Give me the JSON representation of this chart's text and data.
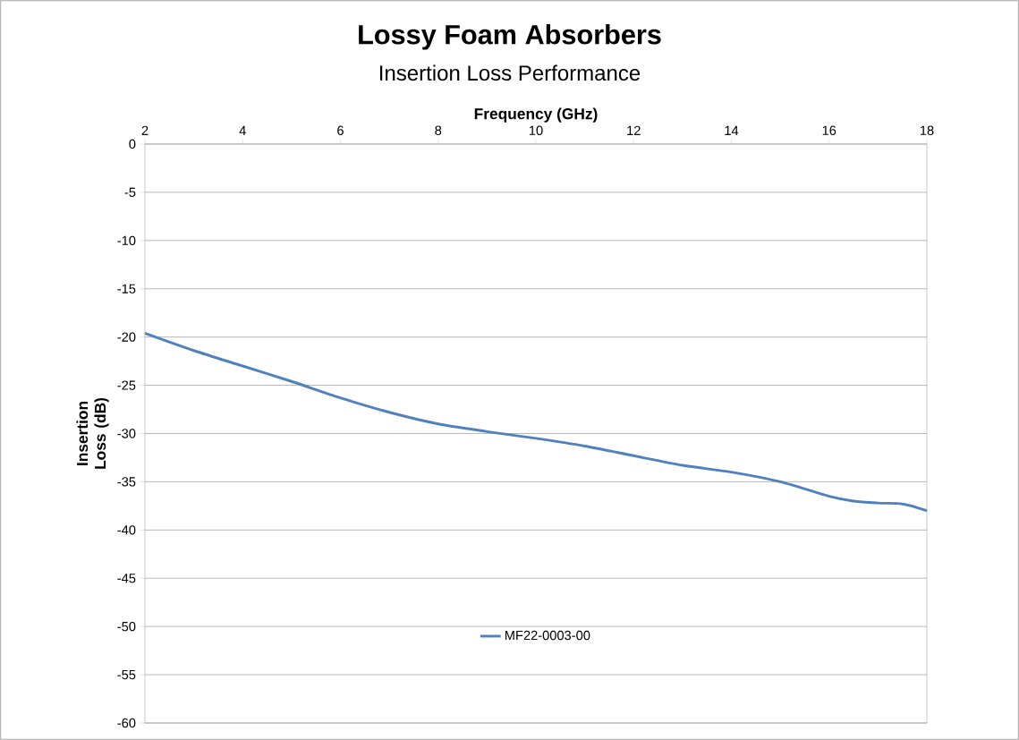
{
  "chart_data": {
    "type": "line",
    "title": "Lossy Foam Absorbers",
    "subtitle": "Insertion Loss Performance",
    "xlabel": "Frequency (GHz)",
    "ylabel": "Insertion Loss (dB)",
    "xlim": [
      2,
      18
    ],
    "xticks": [
      2,
      4,
      6,
      8,
      10,
      12,
      14,
      16,
      18
    ],
    "ylim": [
      -60,
      0
    ],
    "yticks": [
      -60,
      -55,
      -50,
      -45,
      -40,
      -35,
      -30,
      -25,
      -20,
      -15,
      -10,
      -5,
      0
    ],
    "grid": "y",
    "legend": "bottom",
    "marker": "none",
    "line_style": "solid",
    "x": [
      2,
      3,
      4,
      5,
      6,
      7,
      8,
      9,
      10,
      11,
      12,
      13,
      14,
      15,
      16,
      16.5,
      17,
      17.5,
      18
    ],
    "series": [
      {
        "name": "MF22-0003-00",
        "color": "#4f81bd",
        "values": [
          -19.6,
          -21.4,
          -23.0,
          -24.6,
          -26.3,
          -27.8,
          -29.0,
          -29.8,
          -30.5,
          -31.3,
          -32.3,
          -33.3,
          -34.0,
          -35.0,
          -36.5,
          -37.0,
          -37.2,
          -37.3,
          -38.0
        ]
      }
    ]
  }
}
